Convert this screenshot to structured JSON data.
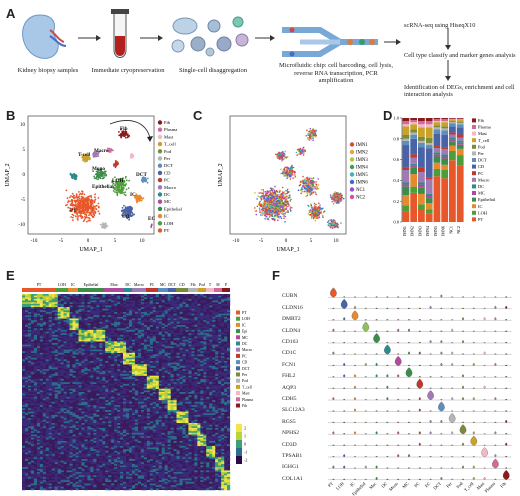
{
  "panels": {
    "a": "A",
    "b": "B",
    "c": "C",
    "d": "D",
    "e": "E",
    "f": "F"
  },
  "workflow": {
    "steps": [
      "Kidney biopsy samples",
      "Immediate cryopreservation",
      "Single-cell disaggregation",
      "Microfluidic chip: cell barcoding, cell lysis, reverse RNA transcription, PCR amplification"
    ],
    "right": [
      "scRNA-seq using HiseqX10",
      "Cell type classify and marker genes analysis",
      "Identification of DEGs, enrichment and cell interaction analysis"
    ]
  },
  "panel_b": {
    "xlabel": "UMAP_1",
    "ylabel": "UMAP_2",
    "xticks": [
      "-10",
      "-5",
      "0",
      "5",
      "10"
    ],
    "yticks": [
      "10",
      "5",
      "0",
      "-5",
      "-10"
    ],
    "cluster_labels": [
      "PT",
      "LOH",
      "CD",
      "IC",
      "T cell",
      "Mono",
      "Fib",
      "Macro",
      "EC",
      "Epithelial",
      "DCT"
    ],
    "legend": [
      "Fib",
      "Plasma",
      "Mast",
      "T_cell",
      "Pod",
      "Per",
      "DCT",
      "CD",
      "PC",
      "Macro",
      "DC",
      "MC",
      "Epithelial",
      "IC",
      "LOH",
      "PT"
    ],
    "colors": [
      "#8b1a1a",
      "#d06a9a",
      "#f2b8c6",
      "#c9a227",
      "#7a8b3a",
      "#b5b5b5",
      "#5a8fbf",
      "#4a63a6",
      "#c0392b",
      "#9f7bb5",
      "#2c8c8c",
      "#b04a9c",
      "#3c8d4a",
      "#e68a2e",
      "#4d9e3a",
      "#e8572a"
    ]
  },
  "panel_c": {
    "xlabel": "UMAP_1",
    "ylabel": "UMAP_2",
    "xticks": [
      "-10",
      "-5",
      "0",
      "5",
      "10"
    ],
    "legend": [
      "IMN1",
      "IMN2",
      "IMN3",
      "IMN4",
      "IMN5",
      "IMN6",
      "NC1",
      "NC2"
    ],
    "colors": [
      "#d94a3a",
      "#e8a33a",
      "#b5c43a",
      "#3a9e4a",
      "#3ab5b5",
      "#3a6ad9",
      "#9a4ad9",
      "#d94aa8"
    ]
  },
  "chart_data": {
    "type": "bar",
    "stacked": true,
    "categories": [
      "IMN1",
      "IMN2",
      "IMN3",
      "IMN4",
      "IMN5",
      "IMN6",
      "NC1",
      "NC2"
    ],
    "yticks": [
      "1.0",
      "0.8",
      "0.6",
      "0.4",
      "0.2",
      "0.0"
    ],
    "ylim": [
      0,
      1
    ],
    "legend": [
      "Fib",
      "Plasma",
      "Mast",
      "T_cell",
      "Pod",
      "Per",
      "DCT",
      "CD",
      "PC",
      "Macro",
      "DC",
      "MC",
      "Epithelial",
      "IC",
      "LOH",
      "PT"
    ],
    "series": [
      {
        "name": "PT",
        "values": [
          0.1,
          0.28,
          0.12,
          0.08,
          0.44,
          0.42,
          0.6,
          0.55
        ]
      },
      {
        "name": "LOH",
        "values": [
          0.06,
          0.06,
          0.05,
          0.04,
          0.07,
          0.08,
          0.09,
          0.1
        ]
      },
      {
        "name": "IC",
        "values": [
          0.1,
          0.12,
          0.1,
          0.06,
          0.06,
          0.05,
          0.05,
          0.06
        ]
      },
      {
        "name": "Epithelial",
        "values": [
          0.08,
          0.06,
          0.06,
          0.05,
          0.06,
          0.06,
          0.04,
          0.04
        ]
      },
      {
        "name": "MC",
        "values": [
          0.02,
          0.02,
          0.03,
          0.02,
          0.02,
          0.02,
          0.02,
          0.02
        ]
      },
      {
        "name": "DC",
        "values": [
          0.02,
          0.02,
          0.02,
          0.02,
          0.02,
          0.02,
          0.02,
          0.02
        ]
      },
      {
        "name": "Macro",
        "values": [
          0.12,
          0.06,
          0.1,
          0.14,
          0.04,
          0.05,
          0.03,
          0.03
        ]
      },
      {
        "name": "PC",
        "values": [
          0.02,
          0.03,
          0.04,
          0.02,
          0.02,
          0.02,
          0.02,
          0.03
        ]
      },
      {
        "name": "CD",
        "values": [
          0.22,
          0.15,
          0.2,
          0.28,
          0.12,
          0.12,
          0.06,
          0.07
        ]
      },
      {
        "name": "DCT",
        "values": [
          0.04,
          0.04,
          0.04,
          0.03,
          0.04,
          0.04,
          0.03,
          0.03
        ]
      },
      {
        "name": "Per",
        "values": [
          0.02,
          0.02,
          0.02,
          0.02,
          0.02,
          0.02,
          0.01,
          0.01
        ]
      },
      {
        "name": "Pod",
        "values": [
          0.04,
          0.03,
          0.04,
          0.05,
          0.02,
          0.02,
          0.01,
          0.01
        ]
      },
      {
        "name": "T_cell",
        "values": [
          0.08,
          0.05,
          0.09,
          0.1,
          0.03,
          0.04,
          0.01,
          0.02
        ]
      },
      {
        "name": "Mast",
        "values": [
          0.02,
          0.02,
          0.03,
          0.03,
          0.01,
          0.01,
          0.005,
          0.005
        ]
      },
      {
        "name": "Plasma",
        "values": [
          0.03,
          0.02,
          0.03,
          0.03,
          0.02,
          0.02,
          0.01,
          0.01
        ]
      },
      {
        "name": "Fib",
        "values": [
          0.03,
          0.02,
          0.03,
          0.03,
          0.01,
          0.01,
          0.005,
          0.005
        ]
      }
    ],
    "colors": {
      "Fib": "#8b1a1a",
      "Plasma": "#d06a9a",
      "Mast": "#f2b8c6",
      "T_cell": "#c9a227",
      "Pod": "#7a8b3a",
      "Per": "#b5b5b5",
      "DCT": "#5a8fbf",
      "CD": "#4a63a6",
      "PC": "#c0392b",
      "Macro": "#9f7bb5",
      "DC": "#2c8c8c",
      "MC": "#b04a9c",
      "Epithelial": "#3c8d4a",
      "IC": "#e68a2e",
      "LOH": "#4d9e3a",
      "PT": "#e8572a"
    }
  },
  "panel_e": {
    "top_labels": [
      "PT",
      "LOH",
      "IC",
      "Epithelial",
      "Mon",
      "DC",
      "Macro",
      "PC",
      "MC",
      "DCT",
      "CD",
      "Fib",
      "Pod",
      "T",
      "M",
      "P"
    ],
    "top_colors": [
      "#e8572a",
      "#4d9e3a",
      "#e68a2e",
      "#3c8d4a",
      "#b04a9c",
      "#2c8c8c",
      "#9f7bb5",
      "#c0392b",
      "#5a8fbf",
      "#4a63a6",
      "#7a8b3a",
      "#b5b5b5",
      "#c9a227",
      "#f2b8c6",
      "#d06a9a",
      "#8b1a1a"
    ],
    "legend": [
      "PT",
      "LOH",
      "IC",
      "Epi",
      "MC",
      "DC",
      "Macro",
      "PC",
      "CD",
      "DCT",
      "Per",
      "Pod",
      "T_cell",
      "Mast",
      "Plasma",
      "Fib"
    ],
    "scale": [
      "2",
      "1",
      "0",
      "-1",
      "-2"
    ]
  },
  "panel_f": {
    "genes": [
      "CUBN",
      "CLDN16",
      "DMRT2",
      "CLDN4",
      "CD163",
      "CD1C",
      "FCN1",
      "FHL2",
      "AQP3",
      "CDH5",
      "SLC12A3",
      "RGS5",
      "NPHS2",
      "CD3D",
      "TPSAB1",
      "IGHG1",
      "COL1A1"
    ],
    "cells": [
      "PT",
      "LOH",
      "IC",
      "Epithelial",
      "Mac",
      "DC",
      "Mono",
      "MC",
      "PC",
      "EC",
      "DCT",
      "Per",
      "Pod",
      "T_cell",
      "Mast",
      "Plasma",
      "Fib"
    ],
    "colors": [
      "#e8572a",
      "#4a63a6",
      "#e68a2e",
      "#8fbf5a",
      "#3c8d4a",
      "#2c8c8c",
      "#b04a9c",
      "#3c8d4a",
      "#c0392b",
      "#9f7bb5",
      "#5a8fbf",
      "#b5b5b5",
      "#7a8b3a",
      "#c9a227",
      "#f2b8c6",
      "#d06a9a",
      "#8b1a1a"
    ]
  }
}
